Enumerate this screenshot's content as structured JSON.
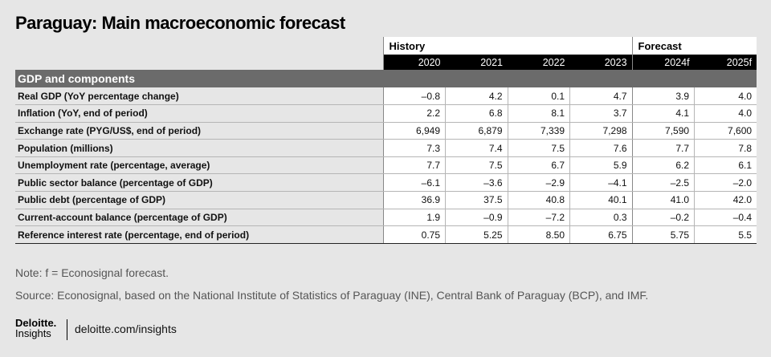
{
  "title": "Paraguay: Main macroeconomic forecast",
  "groups": {
    "history": "History",
    "forecast": "Forecast"
  },
  "years": [
    "2020",
    "2021",
    "2022",
    "2023",
    "2024f",
    "2025f"
  ],
  "section": "GDP and components",
  "rows": [
    {
      "label": "Real GDP (YoY percentage change)",
      "values": [
        "–0.8",
        "4.2",
        "0.1",
        "4.7",
        "3.9",
        "4.0"
      ]
    },
    {
      "label": "Inflation (YoY, end of period)",
      "values": [
        "2.2",
        "6.8",
        "8.1",
        "3.7",
        "4.1",
        "4.0"
      ]
    },
    {
      "label": "Exchange rate (PYG/US$, end of period)",
      "values": [
        "6,949",
        "6,879",
        "7,339",
        "7,298",
        "7,590",
        "7,600"
      ]
    },
    {
      "label": "Population (millions)",
      "values": [
        "7.3",
        "7.4",
        "7.5",
        "7.6",
        "7.7",
        "7.8"
      ]
    },
    {
      "label": "Unemployment rate (percentage, average)",
      "values": [
        "7.7",
        "7.5",
        "6.7",
        "5.9",
        "6.2",
        "6.1"
      ]
    },
    {
      "label": "Public sector balance (percentage of GDP)",
      "values": [
        "–6.1",
        "–3.6",
        "–2.9",
        "–4.1",
        "–2.5",
        "–2.0"
      ]
    },
    {
      "label": "Public debt (percentage of GDP)",
      "values": [
        "36.9",
        "37.5",
        "40.8",
        "40.1",
        "41.0",
        "42.0"
      ]
    },
    {
      "label": "Current-account balance (percentage of GDP)",
      "values": [
        "1.9",
        "–0.9",
        "–7.2",
        "0.3",
        "–0.2",
        "–0.4"
      ]
    },
    {
      "label": "Reference interest rate (percentage, end of period)",
      "values": [
        "0.75",
        "5.25",
        "8.50",
        "6.75",
        "5.75",
        "5.5"
      ]
    }
  ],
  "note": "Note: f = Econosignal forecast.",
  "source": "Source: Econosignal, based on the National Institute of Statistics of Paraguay (INE), Central Bank of Paraguay (BCP), and IMF.",
  "logo": {
    "line1": "Deloitte.",
    "line2": "Insights"
  },
  "site": "deloitte.com/insights"
}
